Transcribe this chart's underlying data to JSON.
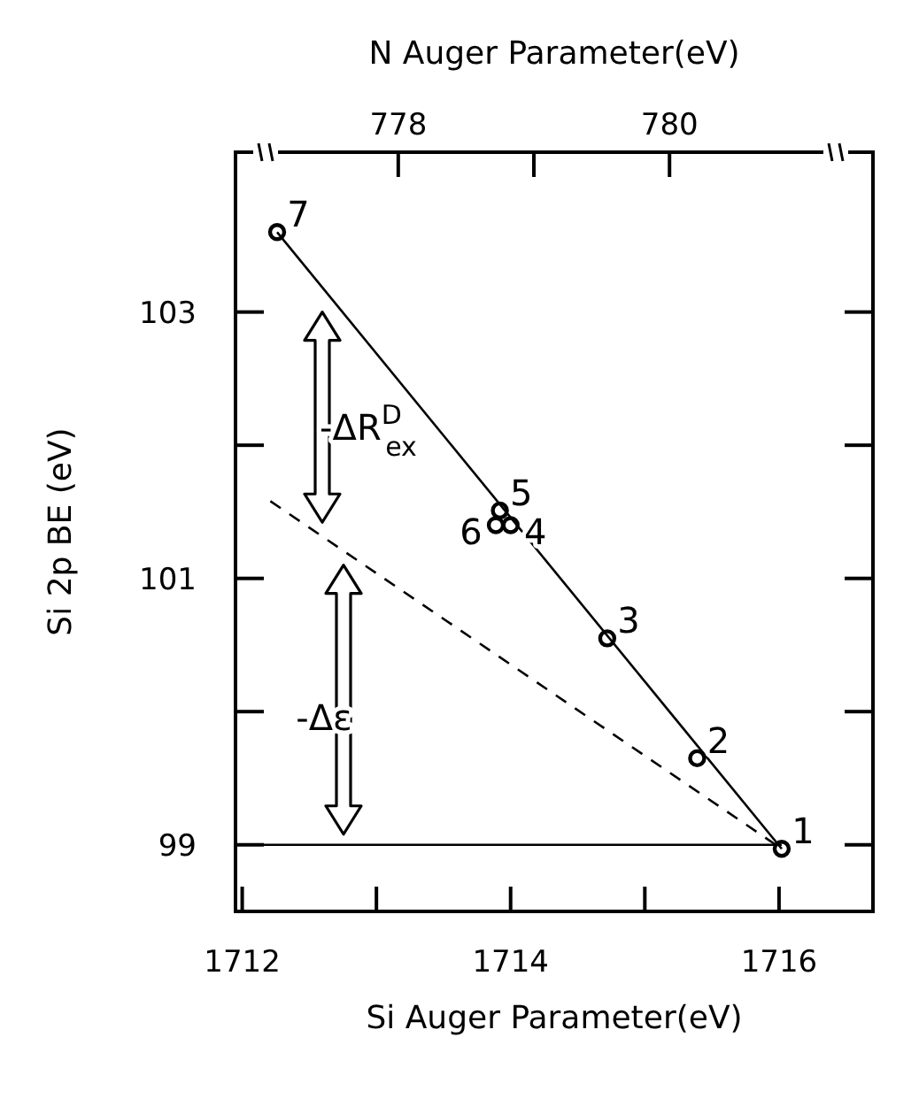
{
  "chart_data": {
    "type": "scatter",
    "xlabel": "Si Auger Parameter(eV)",
    "ylabel": "Si 2p BE (eV)",
    "x2label": "N Auger Parameter(eV)",
    "xlim": [
      1711.95,
      1716.7
    ],
    "xticks": [
      1712,
      {
        "value": 1713,
        "label": null
      },
      1714,
      {
        "value": 1715,
        "label": null
      },
      1716
    ],
    "ylim": [
      98.5,
      104.2
    ],
    "yticks": [
      99,
      {
        "value": 100,
        "label": null
      },
      101,
      {
        "value": 102,
        "label": null
      },
      103
    ],
    "x2lim": [
      776.8,
      781.5
    ],
    "x2ticks": [
      778,
      {
        "value": 779,
        "label": null
      },
      780
    ],
    "series": [
      {
        "color": "#000000",
        "marker": "circle",
        "x": [
          1712.26,
          1713.89,
          1713.92,
          1714.0,
          1714.72,
          1715.39,
          1716.02
        ],
        "values": [
          103.6,
          101.4,
          101.51,
          101.4,
          100.55,
          99.65,
          98.97
        ]
      },
      {
        "type": "line",
        "color": "#000000",
        "marker": "none",
        "line_style": "solid",
        "x": [
          1712.26,
          1716.02
        ],
        "values": [
          103.6,
          98.97
        ]
      },
      {
        "type": "line",
        "color": "#000000",
        "marker": "none",
        "line_style": "dashed",
        "x": [
          1712.21,
          1716.02
        ],
        "values": [
          101.58,
          98.97
        ]
      },
      {
        "type": "line",
        "color": "#000000",
        "marker": "none",
        "line_style": "solid",
        "x": [
          1711.95,
          1716.02
        ],
        "values": [
          99.0,
          99.0
        ]
      }
    ],
    "annotations": [
      {
        "text": "7",
        "x": 1712.26,
        "y": 103.6
      },
      {
        "text": "5",
        "x": 1713.92,
        "y": 101.51
      },
      {
        "text": "6",
        "x": 1713.89,
        "y": 101.4
      },
      {
        "text": "4",
        "x": 1714.0,
        "y": 101.4
      },
      {
        "text": "3",
        "x": 1714.72,
        "y": 100.55
      },
      {
        "text": "2",
        "x": 1715.39,
        "y": 99.65
      },
      {
        "text": "1",
        "x": 1716.02,
        "y": 98.97
      },
      "-ΔR$^{D}$$_{ex}$",
      "-Δε"
    ]
  }
}
